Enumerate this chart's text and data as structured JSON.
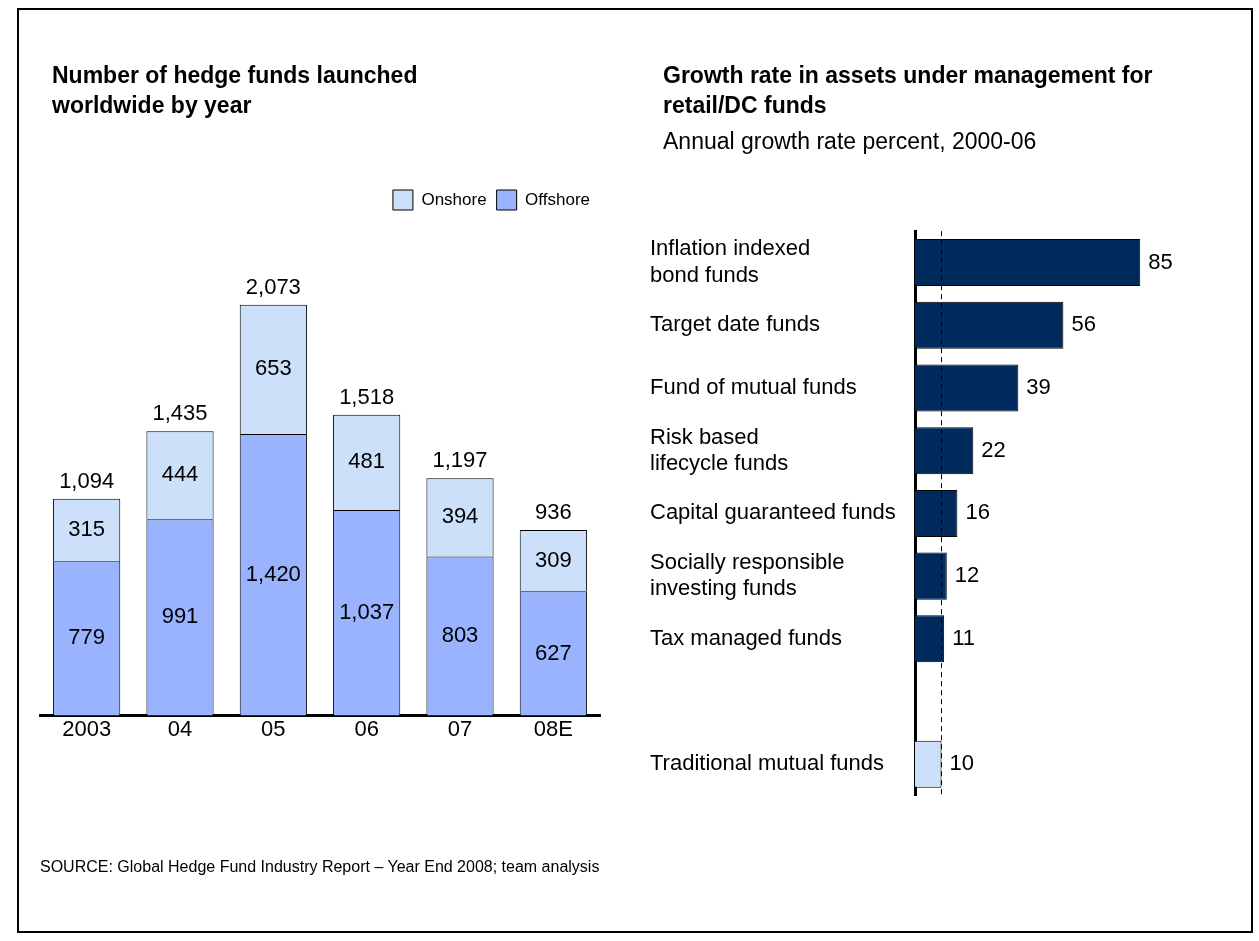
{
  "chart_data": [
    {
      "type": "bar",
      "title": "Number of hedge funds launched worldwide by year",
      "categories": [
        "2003",
        "04",
        "05",
        "06",
        "07",
        "08E"
      ],
      "stacked": true,
      "legend": "top right",
      "data_labels": true,
      "series": [
        {
          "name": "Offshore",
          "color": "#99b3ff",
          "values": [
            779,
            991,
            1420,
            1037,
            803,
            627
          ],
          "value_labels": [
            "779",
            "991",
            "1,420",
            "1,037",
            "803",
            "627"
          ]
        },
        {
          "name": "Onshore",
          "color": "#cce0fa",
          "values": [
            315,
            444,
            653,
            481,
            394,
            309
          ],
          "value_labels": [
            "315",
            "444",
            "653",
            "481",
            "394",
            "309"
          ]
        }
      ],
      "totals": [
        "1,094",
        "1,435",
        "2,073",
        "1,518",
        "1,197",
        "936"
      ],
      "annotations": [
        "SOURCE:  Global Hedge Fund Industry Report – Year End 2008; team analysis"
      ]
    },
    {
      "type": "bar",
      "title": "Growth rate in assets under management for retail/DC funds",
      "subtitle": "Annual growth rate percent, 2000-06",
      "orientation": "horizontal",
      "data_labels": true,
      "categories": [
        "Inflation indexed bond funds",
        "Target date funds",
        "Fund of mutual funds",
        "Risk based lifecycle funds",
        "Capital guaranteed funds",
        "Socially responsible investing funds",
        "Tax managed funds",
        null,
        "Traditional mutual funds"
      ],
      "values": [
        85,
        56,
        39,
        22,
        16,
        12,
        11,
        null,
        10
      ],
      "colors": [
        "#002a5c",
        "#002a5c",
        "#002a5c",
        "#002a5c",
        "#002a5c",
        "#002a5c",
        "#002a5c",
        "#002a5c",
        "#cce0fa"
      ],
      "ref_lines": [
        {
          "axis": "x",
          "value": 10,
          "color": "#000000",
          "line_style": "dashed"
        }
      ]
    }
  ]
}
